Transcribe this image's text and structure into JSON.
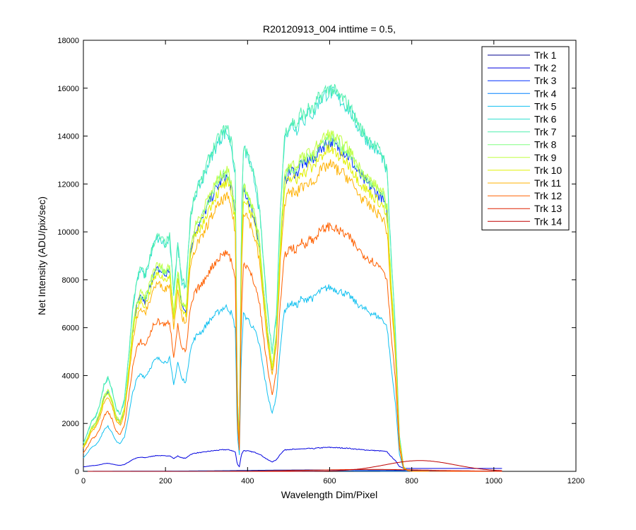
{
  "chart_data": {
    "type": "line",
    "title": "R20120913_004 inttime = 0.5,",
    "xlabel": "Wavelength Dim/Pixel",
    "ylabel": "Net Intensity (ADU/pix/sec)",
    "xlim": [
      0,
      1200
    ],
    "ylim": [
      0,
      18000
    ],
    "xticks": [
      0,
      200,
      400,
      600,
      800,
      1000,
      1200
    ],
    "yticks": [
      0,
      2000,
      4000,
      6000,
      8000,
      10000,
      12000,
      14000,
      16000,
      18000
    ],
    "grid": false,
    "legend_position": "top-right",
    "series": [
      {
        "name": "Trk 1",
        "color": "#00008f",
        "kind": "low",
        "peak": 60,
        "center": 600,
        "width": 300
      },
      {
        "name": "Trk 2",
        "color": "#0000df",
        "kind": "shape",
        "scale": 0.055,
        "offset": 120
      },
      {
        "name": "Trk 3",
        "color": "#0030ff",
        "kind": "shape",
        "scale": 0.86
      },
      {
        "name": "Trk 4",
        "color": "#0080ff",
        "kind": "low",
        "peak": 20,
        "center": 500,
        "width": 350
      },
      {
        "name": "Trk 5",
        "color": "#10c0f0",
        "kind": "shape",
        "scale": 0.48
      },
      {
        "name": "Trk 6",
        "color": "#30e0d0",
        "kind": "shape",
        "scale": 0.99
      },
      {
        "name": "Trk 7",
        "color": "#50efaf",
        "kind": "shape",
        "scale": 1.0
      },
      {
        "name": "Trk 8",
        "color": "#80ff80",
        "kind": "shape",
        "scale": 0.87
      },
      {
        "name": "Trk 9",
        "color": "#c0ff40",
        "kind": "shape",
        "scale": 0.88
      },
      {
        "name": "Trk 10",
        "color": "#e0f000",
        "kind": "shape",
        "scale": 0.84
      },
      {
        "name": "Trk 11",
        "color": "#ffb000",
        "kind": "shape",
        "scale": 0.8
      },
      {
        "name": "Trk 12",
        "color": "#ff6000",
        "kind": "shape",
        "scale": 0.64
      },
      {
        "name": "Trk 13",
        "color": "#df2000",
        "kind": "low",
        "peak": 80,
        "center": 700,
        "width": 200
      },
      {
        "name": "Trk 14",
        "color": "#bf0000",
        "kind": "hump",
        "peak": 450,
        "center": 820,
        "width": 120
      }
    ],
    "reference_profile": {
      "x": [
        0,
        10,
        20,
        30,
        40,
        50,
        60,
        70,
        80,
        90,
        100,
        110,
        120,
        130,
        140,
        150,
        160,
        170,
        180,
        190,
        200,
        210,
        220,
        230,
        240,
        250,
        260,
        270,
        280,
        290,
        300,
        310,
        320,
        330,
        340,
        350,
        360,
        370,
        375,
        380,
        385,
        390,
        400,
        410,
        420,
        430,
        440,
        450,
        460,
        470,
        480,
        490,
        500,
        510,
        520,
        530,
        540,
        550,
        560,
        570,
        580,
        590,
        600,
        610,
        620,
        630,
        640,
        650,
        660,
        670,
        680,
        690,
        700,
        710,
        720,
        730,
        740,
        750,
        760,
        770,
        780,
        790,
        800,
        850,
        900,
        1000,
        1020
      ],
      "y": [
        1200,
        1600,
        2100,
        2300,
        2800,
        3600,
        3900,
        3400,
        2600,
        2400,
        3000,
        4800,
        6800,
        8000,
        8500,
        8200,
        8800,
        9500,
        9800,
        9700,
        9500,
        9800,
        7500,
        9500,
        8000,
        7800,
        10500,
        11500,
        12000,
        12200,
        12800,
        13200,
        13600,
        13900,
        14200,
        14300,
        13800,
        12500,
        3200,
        1400,
        10500,
        13600,
        13300,
        12700,
        12000,
        10800,
        8500,
        6500,
        5000,
        6500,
        11000,
        14000,
        14500,
        14600,
        14400,
        15000,
        14800,
        15200,
        15000,
        15500,
        15700,
        15900,
        16000,
        15900,
        15700,
        15600,
        15400,
        15200,
        14800,
        14500,
        14200,
        14000,
        13800,
        13600,
        13400,
        13200,
        12500,
        9000,
        6000,
        1500,
        200,
        40,
        10,
        0,
        0,
        0,
        0
      ]
    }
  }
}
